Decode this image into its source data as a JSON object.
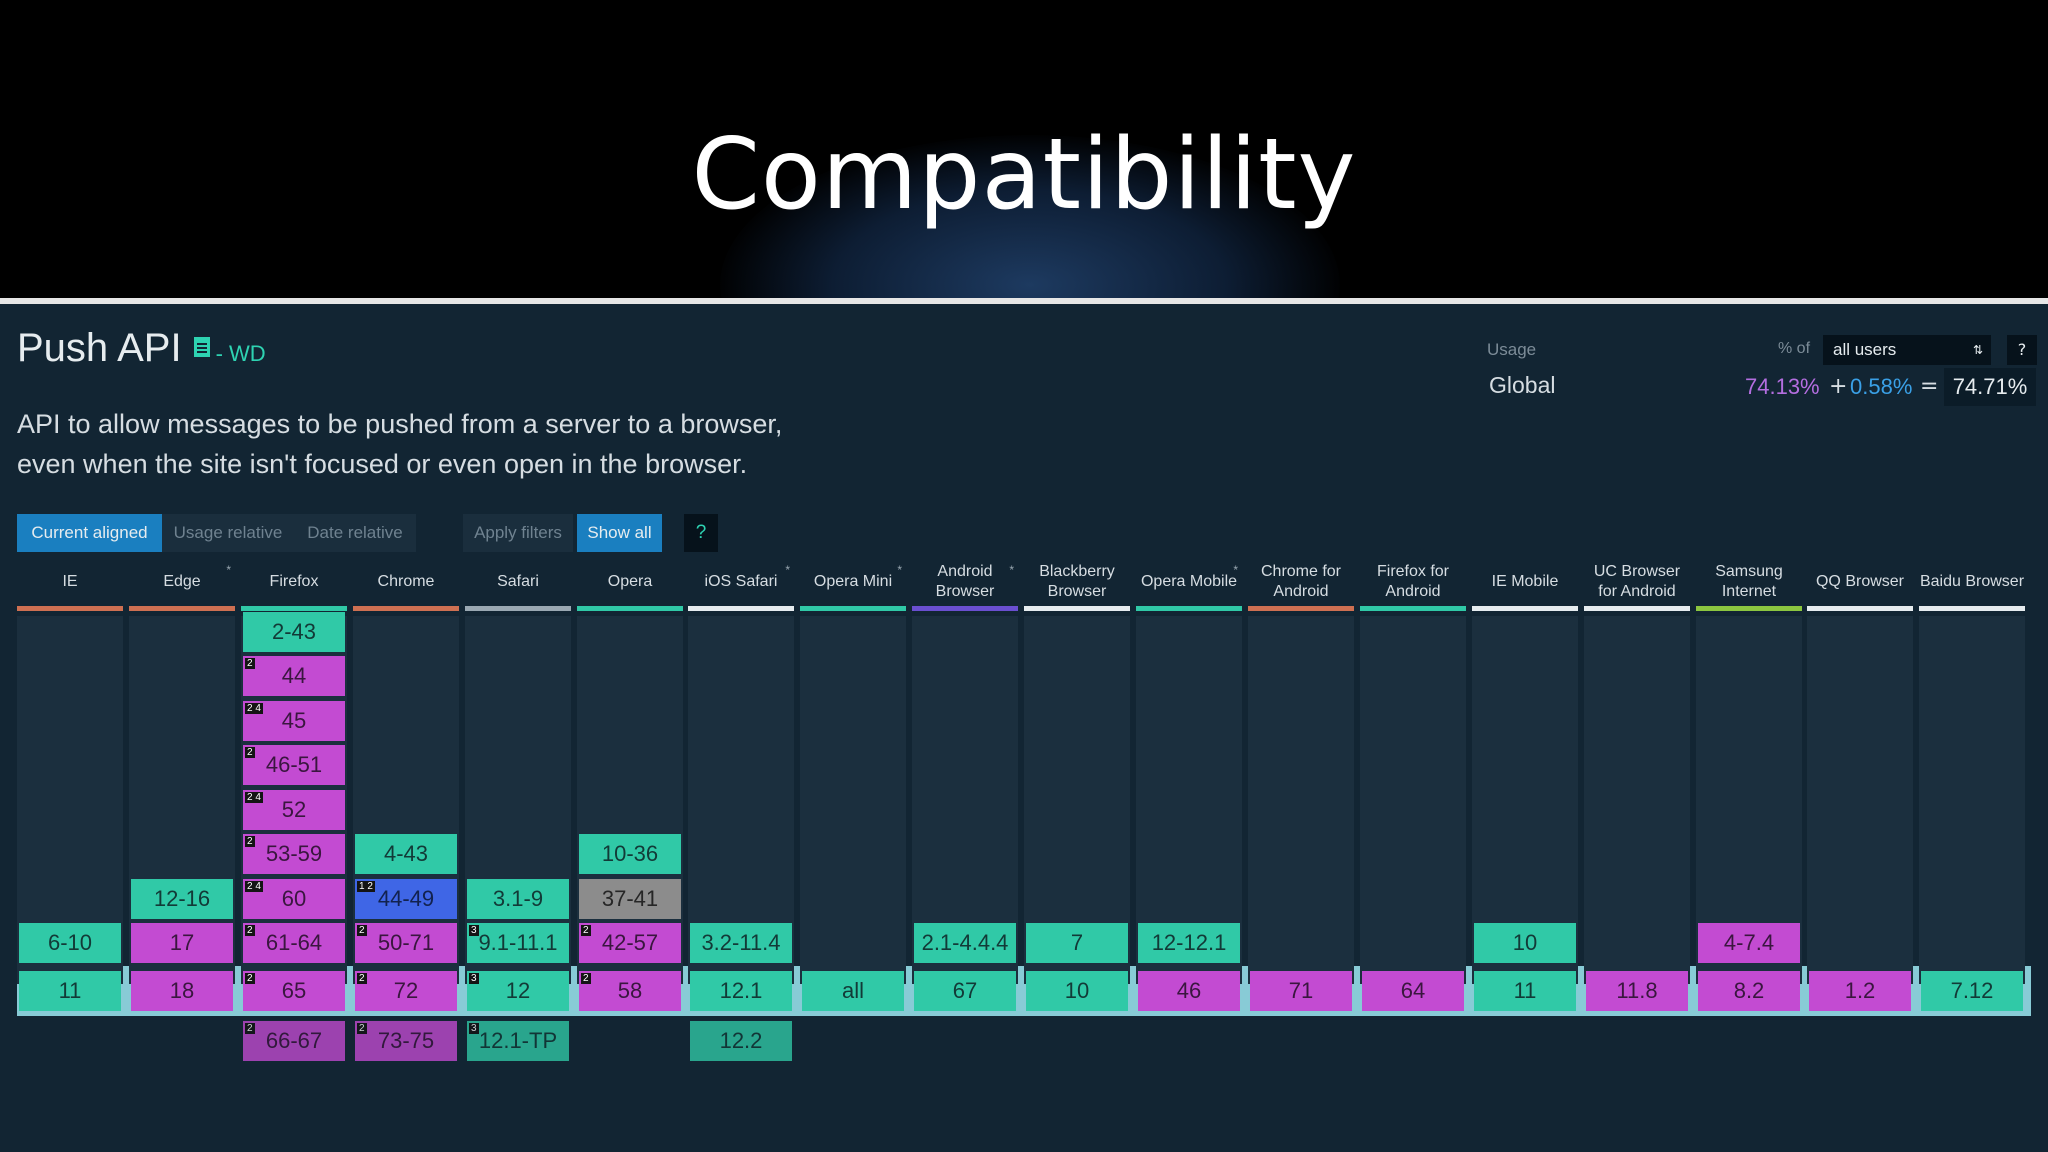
{
  "slide": {
    "title": "Compatibility"
  },
  "feature": {
    "title": "Push API",
    "status": "- WD",
    "description_line1": "API to allow messages to be pushed from a server to a browser,",
    "description_line2": "even when the site isn't focused or even open in the browser."
  },
  "usage": {
    "label": "Usage",
    "pct_of_label": "% of",
    "users_option": "all users",
    "help": "?",
    "region": "Global",
    "supported": "74.13%",
    "plus": "+",
    "partial": "0.58%",
    "equals": "=",
    "total": "74.71%"
  },
  "filters": {
    "current_aligned": "Current aligned",
    "usage_relative": "Usage relative",
    "date_relative": "Date relative",
    "apply_filters": "Apply filters",
    "show_all": "Show all",
    "help": "?"
  },
  "colors": {
    "supported": "#30c9a7",
    "not_supported": "#c34bd2",
    "partial": "#3f66e6",
    "unknown": "#8c8c8c",
    "background": "#122533"
  },
  "browsers": [
    {
      "name": "IE",
      "star": "",
      "line": "#ce7052",
      "cells": [
        {
          "row": 0,
          "label": "6-10",
          "status": "y"
        },
        {
          "row": 1,
          "label": "11",
          "status": "y"
        }
      ]
    },
    {
      "name": "Edge",
      "star": "*",
      "line": "#ce7052",
      "cells": [
        {
          "row": -1,
          "label": "12-16",
          "status": "y"
        },
        {
          "row": 0,
          "label": "17",
          "status": "a"
        },
        {
          "row": 1,
          "label": "18",
          "status": "a"
        }
      ]
    },
    {
      "name": "Firefox",
      "star": "",
      "line": "#30c9a7",
      "cells": [
        {
          "row": -7,
          "label": "2-43",
          "status": "y"
        },
        {
          "row": -6,
          "label": "44",
          "status": "a",
          "note": "2"
        },
        {
          "row": -5,
          "label": "45",
          "status": "a",
          "note": "2 4"
        },
        {
          "row": -4,
          "label": "46-51",
          "status": "a",
          "note": "2"
        },
        {
          "row": -3,
          "label": "52",
          "status": "a",
          "note": "2 4"
        },
        {
          "row": -2,
          "label": "53-59",
          "status": "a",
          "note": "2"
        },
        {
          "row": -1,
          "label": "60",
          "status": "a",
          "note": "2 4"
        },
        {
          "row": 0,
          "label": "61-64",
          "status": "a",
          "note": "2"
        },
        {
          "row": 1,
          "label": "65",
          "status": "a",
          "note": "2"
        },
        {
          "row": 2,
          "label": "66-67",
          "status": "a",
          "note": "2",
          "dim": true
        }
      ]
    },
    {
      "name": "Chrome",
      "star": "",
      "line": "#ce7052",
      "cells": [
        {
          "row": -2,
          "label": "4-43",
          "status": "y"
        },
        {
          "row": -1,
          "label": "44-49",
          "status": "p",
          "note": "1 2"
        },
        {
          "row": 0,
          "label": "50-71",
          "status": "a",
          "note": "2"
        },
        {
          "row": 1,
          "label": "72",
          "status": "a",
          "note": "2"
        },
        {
          "row": 2,
          "label": "73-75",
          "status": "a",
          "note": "2",
          "dim": true
        }
      ]
    },
    {
      "name": "Safari",
      "star": "",
      "line": "#9aa8b2",
      "cells": [
        {
          "row": -1,
          "label": "3.1-9",
          "status": "y"
        },
        {
          "row": 0,
          "label": "9.1-11.1",
          "status": "y",
          "note": "3"
        },
        {
          "row": 1,
          "label": "12",
          "status": "y",
          "note": "3"
        },
        {
          "row": 2,
          "label": "12.1-TP",
          "status": "y",
          "note": "3",
          "dim": true
        }
      ]
    },
    {
      "name": "Opera",
      "star": "",
      "line": "#30c9a7",
      "cells": [
        {
          "row": -2,
          "label": "10-36",
          "status": "y"
        },
        {
          "row": -1,
          "label": "37-41",
          "status": "u"
        },
        {
          "row": 0,
          "label": "42-57",
          "status": "a",
          "note": "2"
        },
        {
          "row": 1,
          "label": "58",
          "status": "a",
          "note": "2"
        }
      ]
    },
    {
      "name": "iOS Safari",
      "star": "*",
      "line": "#e6ecef",
      "cells": [
        {
          "row": 0,
          "label": "3.2-11.4",
          "status": "y"
        },
        {
          "row": 1,
          "label": "12.1",
          "status": "y"
        },
        {
          "row": 2,
          "label": "12.2",
          "status": "y",
          "dim": true
        }
      ]
    },
    {
      "name": "Opera Mini",
      "star": "*",
      "line": "#30c9a7",
      "cells": [
        {
          "row": 1,
          "label": "all",
          "status": "y"
        }
      ]
    },
    {
      "name": "Android Browser",
      "star": "*",
      "line": "#6a4fd0",
      "cells": [
        {
          "row": 0,
          "label": "2.1-4.4.4",
          "status": "y"
        },
        {
          "row": 1,
          "label": "67",
          "status": "y"
        }
      ]
    },
    {
      "name": "Blackberry Browser",
      "star": "",
      "line": "#e6ecef",
      "cells": [
        {
          "row": 0,
          "label": "7",
          "status": "y"
        },
        {
          "row": 1,
          "label": "10",
          "status": "y"
        }
      ]
    },
    {
      "name": "Opera Mobile",
      "star": "*",
      "line": "#30c9a7",
      "cells": [
        {
          "row": 0,
          "label": "12-12.1",
          "status": "y"
        },
        {
          "row": 1,
          "label": "46",
          "status": "a"
        }
      ]
    },
    {
      "name": "Chrome for Android",
      "star": "",
      "line": "#ce7052",
      "cells": [
        {
          "row": 1,
          "label": "71",
          "status": "a"
        }
      ]
    },
    {
      "name": "Firefox for Android",
      "star": "",
      "line": "#30c9a7",
      "cells": [
        {
          "row": 1,
          "label": "64",
          "status": "a"
        }
      ]
    },
    {
      "name": "IE Mobile",
      "star": "",
      "line": "#e6ecef",
      "cells": [
        {
          "row": 0,
          "label": "10",
          "status": "y"
        },
        {
          "row": 1,
          "label": "11",
          "status": "y"
        }
      ]
    },
    {
      "name": "UC Browser for Android",
      "star": "",
      "line": "#e6ecef",
      "cells": [
        {
          "row": 1,
          "label": "11.8",
          "status": "a"
        }
      ]
    },
    {
      "name": "Samsung Internet",
      "star": "",
      "line": "#8cc640",
      "cells": [
        {
          "row": 0,
          "label": "4-7.4",
          "status": "a"
        },
        {
          "row": 1,
          "label": "8.2",
          "status": "a"
        }
      ]
    },
    {
      "name": "QQ Browser",
      "star": "",
      "line": "#e6ecef",
      "cells": [
        {
          "row": 1,
          "label": "1.2",
          "status": "a"
        }
      ]
    },
    {
      "name": "Baidu Browser",
      "star": "",
      "line": "#e6ecef",
      "cells": [
        {
          "row": 1,
          "label": "7.12",
          "status": "y"
        }
      ]
    }
  ]
}
